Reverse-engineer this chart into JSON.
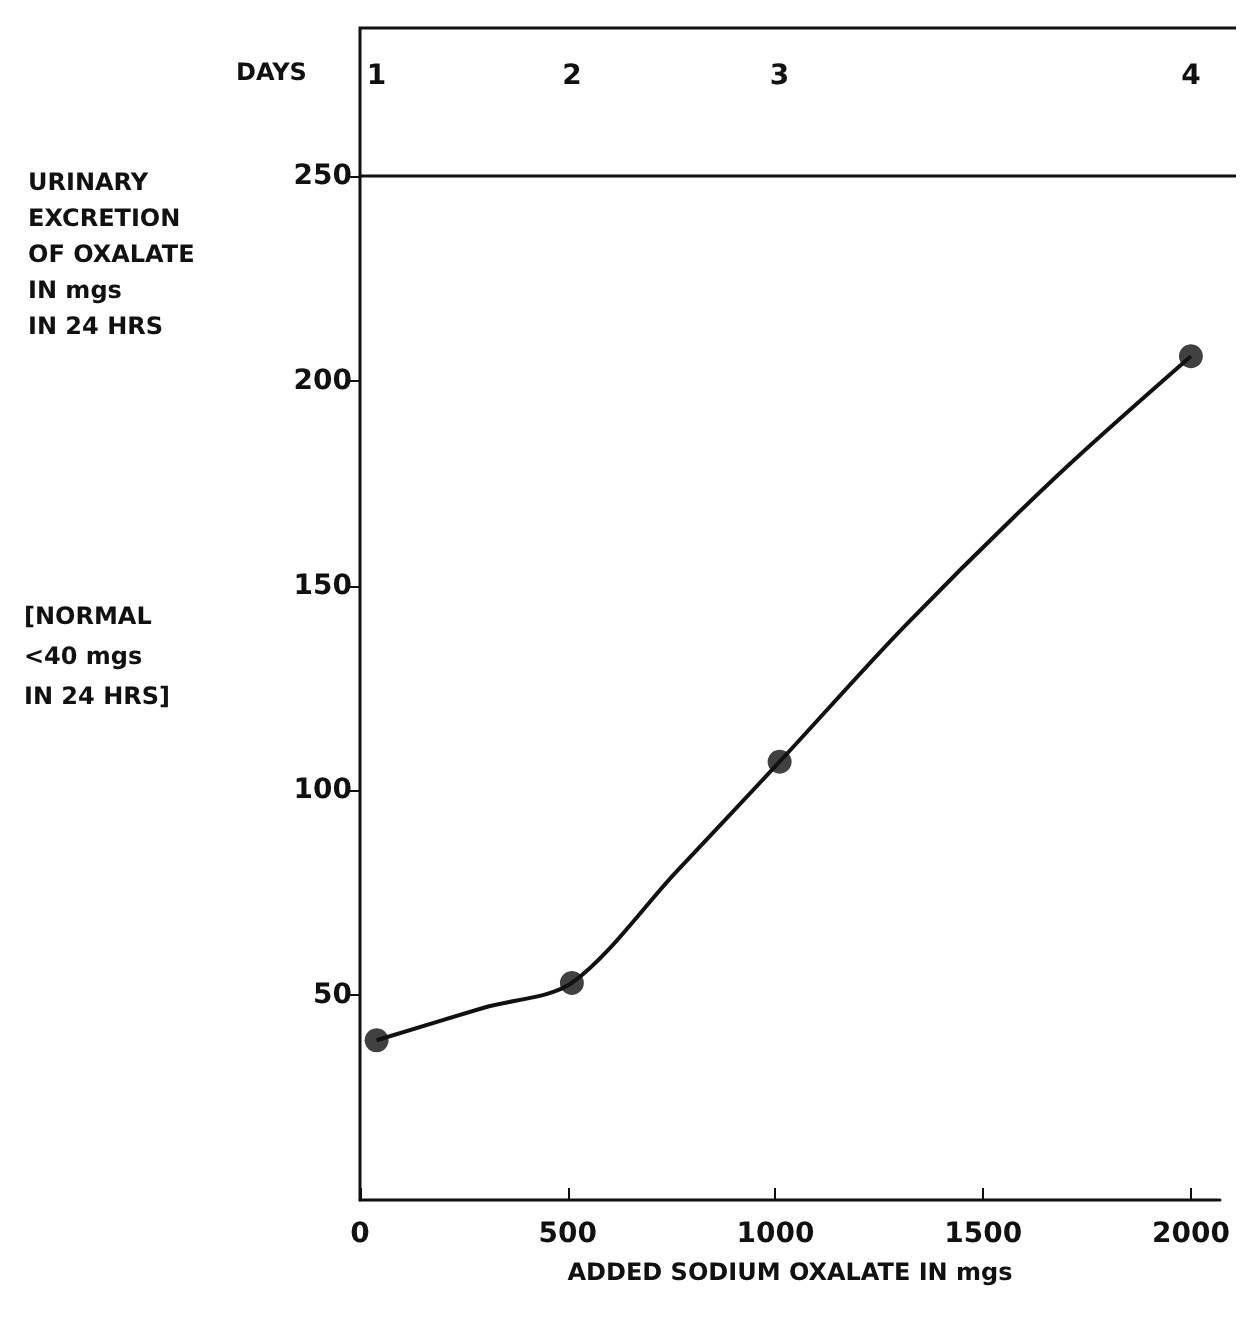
{
  "chart_data": {
    "type": "line",
    "xlabel": "ADDED SODIUM OXALATE IN mgs",
    "ylabel": "URINARY EXCRETION OF OXALATE IN mgs IN 24 HRS",
    "annotations": [
      "[NORMAL <40 mgs IN 24 HRS]",
      "DAYS",
      "1",
      "2",
      "3",
      "4"
    ],
    "series": [
      {
        "color": "#111111",
        "marker": "none",
        "x": [
          40,
          300,
          510,
          760,
          1010,
          1310,
          1680,
          2000
        ],
        "values": [
          39,
          47,
          53,
          80,
          107,
          140,
          177,
          206
        ]
      },
      {
        "type": "scatter",
        "color": "#111111",
        "marker": "circle",
        "x": [
          40,
          510,
          1010,
          2000
        ],
        "values": [
          39,
          53,
          107,
          206
        ]
      }
    ],
    "xlim": [
      0,
      2070
    ],
    "xticks": [
      0,
      500,
      1000,
      1500,
      2000
    ],
    "ylim": [
      0,
      250
    ],
    "yticks": [
      50,
      100,
      150,
      200,
      250
    ],
    "grid": false,
    "line_style": "solid"
  }
}
